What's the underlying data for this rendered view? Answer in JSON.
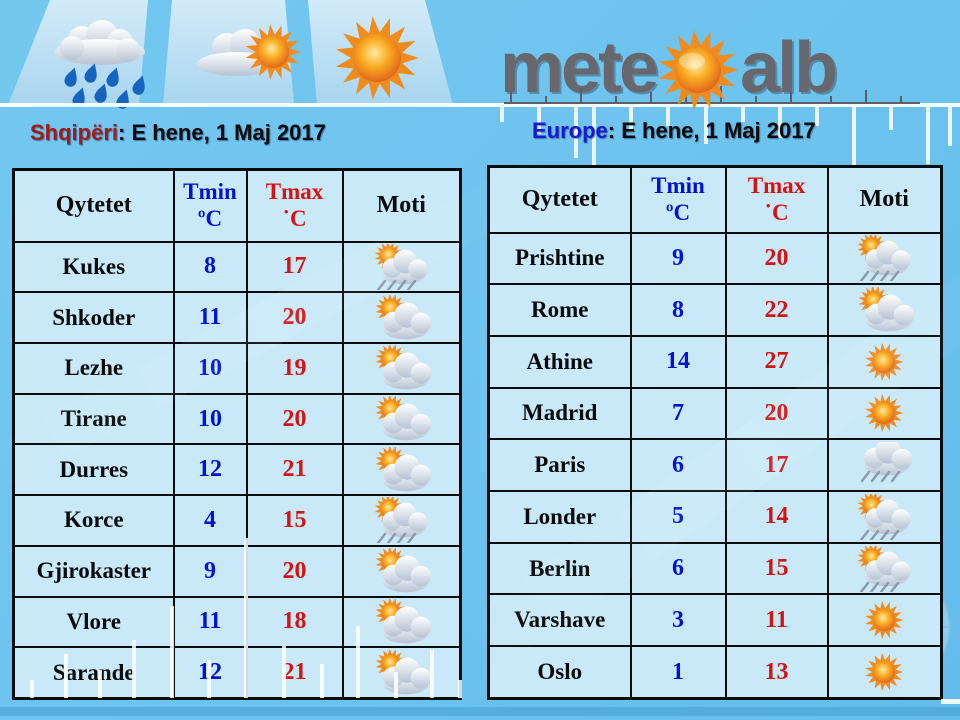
{
  "logo": {
    "text_left": "mete",
    "text_right": "alb"
  },
  "header_weather_icons": [
    {
      "name": "rain-icon"
    },
    {
      "name": "sun-cloud-icon"
    },
    {
      "name": "sun-icon"
    }
  ],
  "sections": {
    "albania": {
      "region": "Shqipëri",
      "date_text": ": E hene, 1 Maj 2017"
    },
    "europe": {
      "region": "Europe",
      "date_text": ": E hene, 1 Maj 2017"
    }
  },
  "tables": [
    {
      "id": "albania",
      "headers": {
        "city": "Qytetet",
        "tmin": "Tmin",
        "tmin_unit": "ºC",
        "tmax": "Tmax",
        "tmax_unit": "˙C",
        "weather": "Moti"
      },
      "rows": [
        {
          "city": "Kukes",
          "tmin": "8",
          "tmax": "17",
          "icon": "sun-cloud-rain"
        },
        {
          "city": "Shkoder",
          "tmin": "11",
          "tmax": "20",
          "icon": "sun-cloud"
        },
        {
          "city": "Lezhe",
          "tmin": "10",
          "tmax": "19",
          "icon": "sun-cloud"
        },
        {
          "city": "Tirane",
          "tmin": "10",
          "tmax": "20",
          "icon": "sun-cloud"
        },
        {
          "city": "Durres",
          "tmin": "12",
          "tmax": "21",
          "icon": "sun-cloud"
        },
        {
          "city": "Korce",
          "tmin": "4",
          "tmax": "15",
          "icon": "sun-cloud-rain"
        },
        {
          "city": "Gjirokaster",
          "tmin": "9",
          "tmax": "20",
          "icon": "sun-cloud"
        },
        {
          "city": "Vlore",
          "tmin": "11",
          "tmax": "18",
          "icon": "sun-cloud"
        },
        {
          "city": "Sarande",
          "tmin": "12",
          "tmax": "21",
          "icon": "sun-cloud"
        }
      ]
    },
    {
      "id": "europe",
      "headers": {
        "city": "Qytetet",
        "tmin": "Tmin",
        "tmin_unit": "ºC",
        "tmax": "Tmax",
        "tmax_unit": "˙C",
        "weather": "Moti"
      },
      "rows": [
        {
          "city": "Prishtine",
          "tmin": "9",
          "tmax": "20",
          "icon": "sun-cloud-rain"
        },
        {
          "city": "Rome",
          "tmin": "8",
          "tmax": "22",
          "icon": "sun-cloud"
        },
        {
          "city": "Athine",
          "tmin": "14",
          "tmax": "27",
          "icon": "sun"
        },
        {
          "city": "Madrid",
          "tmin": "7",
          "tmax": "20",
          "icon": "sun"
        },
        {
          "city": "Paris",
          "tmin": "6",
          "tmax": "17",
          "icon": "cloud-rain"
        },
        {
          "city": "Londer",
          "tmin": "5",
          "tmax": "14",
          "icon": "sun-cloud-rain"
        },
        {
          "city": "Berlin",
          "tmin": "6",
          "tmax": "15",
          "icon": "sun-cloud-rain"
        },
        {
          "city": "Varshave",
          "tmin": "3",
          "tmax": "11",
          "icon": "sun"
        },
        {
          "city": "Oslo",
          "tmin": "1",
          "tmax": "13",
          "icon": "sun"
        }
      ]
    }
  ],
  "colors": {
    "background": "#6CC3EE",
    "cell_background": "#C9E9F8",
    "tmin_blue": "#0013CE",
    "tmax_red": "#D21414",
    "region_red": "#A31A17",
    "region_blue": "#1A1ACD",
    "logo_gray": "#67676D"
  }
}
